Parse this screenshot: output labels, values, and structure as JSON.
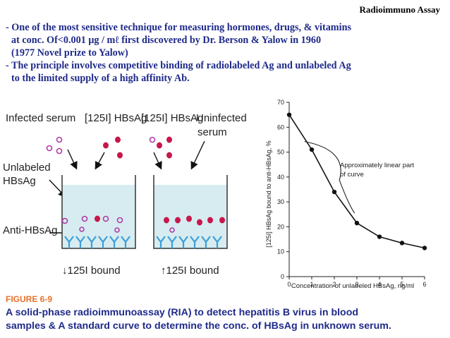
{
  "header": {
    "title": "Radioimmuno Assay"
  },
  "bullets": [
    {
      "line1": "- One of the most sensitive technique for measuring hormones, drugs, & vitamins",
      "line2a": "at conc. Of<0.001 ",
      "unit": "μg / mℓ",
      "line2b": " first discovered by Dr. Berson & Yalow in 1960",
      "line3": "(1977 Novel prize to Yalow)"
    },
    {
      "line1": "- The principle involves competitive binding of radiolabeled Ag and unlabeled Ag",
      "line2": "to the limited supply of a high affinity Ab."
    }
  ],
  "diagram": {
    "infected_serum": "Infected serum",
    "hbsag_left": "[125I] HBsAg",
    "hbsag_right": "[125I] HBsAg",
    "uninfected_1": "Uninfected",
    "uninfected_2": "serum",
    "unlabeled_1": "Unlabeled",
    "unlabeled_2": "HBsAg",
    "anti_hbsag": "Anti-HBsAg",
    "bound_low": "↓125I bound",
    "bound_high": "↑125I bound"
  },
  "chart_data": {
    "type": "line",
    "title": "",
    "xlabel": "Concentration of unlabeled HBsAg, ng/ml",
    "ylabel": "[125I] HBsAg bound to anti-HBsAg, %",
    "xlim": [
      0,
      6
    ],
    "ylim": [
      0,
      70
    ],
    "xticks": [
      0,
      1,
      2,
      3,
      4,
      5,
      6
    ],
    "yticks": [
      0,
      10,
      20,
      30,
      40,
      50,
      60,
      70
    ],
    "x": [
      0,
      1,
      2,
      3,
      4,
      5,
      6
    ],
    "y": [
      65,
      51,
      34,
      21.5,
      16,
      13.5,
      11.5
    ],
    "annotation": [
      "Approximately linear part",
      "of curve"
    ]
  },
  "figure": {
    "label": "FIGURE 6-9",
    "caption_line1": "A solid-phase radioimmunoassay (RIA) to detect hepatitis B virus in blood",
    "caption_line2": "samples & A standard curve to determine the conc. of HBsAg in unknown serum."
  },
  "colors": {
    "text_blue": "#1f2a8a",
    "figure_orange": "#e8702a",
    "labeled_ag": "#c8174a",
    "unlabeled_ag": "#b03ca8",
    "antibody": "#3d9ed8",
    "liquid": "#d6ecf0"
  }
}
